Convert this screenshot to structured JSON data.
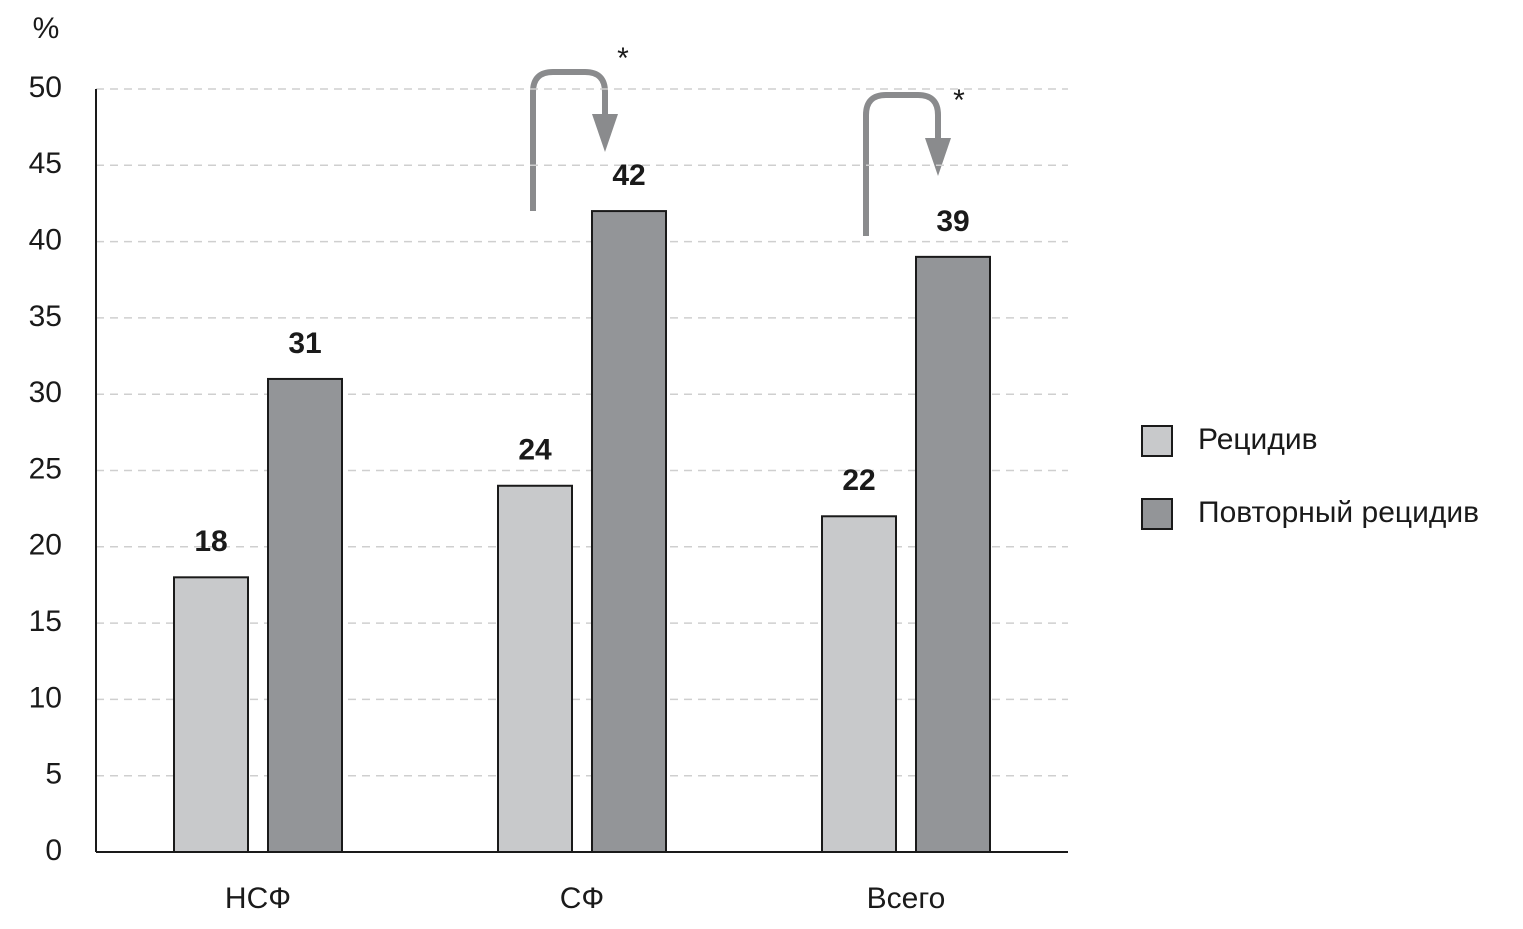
{
  "chart_data": {
    "type": "bar",
    "y_label": "%",
    "categories": [
      "НСФ",
      "СФ",
      "Всего"
    ],
    "series": [
      {
        "name": "Рецидив",
        "color": "#c8c9cb",
        "values": [
          18,
          24,
          22
        ]
      },
      {
        "name": "Повторный рецидив",
        "color": "#939598",
        "values": [
          31,
          42,
          39
        ]
      }
    ],
    "ylim": [
      0,
      50
    ],
    "yticks": [
      0,
      5,
      10,
      15,
      20,
      25,
      30,
      35,
      40,
      45,
      50
    ],
    "grid": true,
    "legend": "right",
    "annotations": [
      "*",
      "*"
    ]
  }
}
